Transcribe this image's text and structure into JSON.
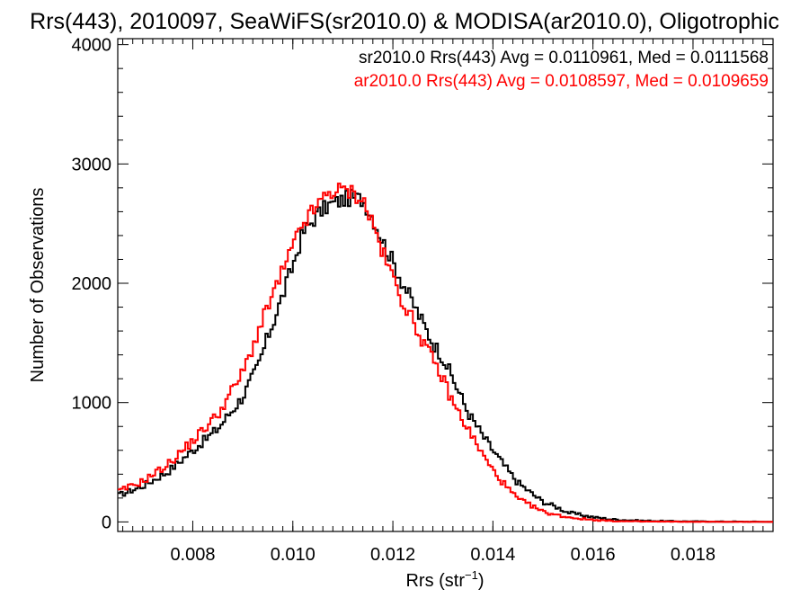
{
  "chart_data": {
    "type": "histogram",
    "title": "Rrs(443), 2010097, SeaWiFS(sr2010.0) & MODISA(ar2010.0), Oligotrophic",
    "xlabel": "Rrs (str",
    "xlabel_sup": "−1",
    "xlabel_close": ")",
    "ylabel": "Number of Observations",
    "xlim": [
      0.0065,
      0.0196
    ],
    "ylim": [
      -80,
      4050
    ],
    "xticks": [
      "0.008",
      "0.010",
      "0.012",
      "0.014",
      "0.016",
      "0.018"
    ],
    "yticks": [
      "0",
      "1000",
      "2000",
      "3000",
      "4000"
    ],
    "grid": false,
    "legend_position": "top-right",
    "series": [
      {
        "name": "sr2010.0",
        "legend": "sr2010.0 Rrs(443) Avg = 0.0110961, Med = 0.0111568",
        "color": "#000000",
        "points": [
          [
            0.0065,
            220
          ],
          [
            0.007,
            300
          ],
          [
            0.0075,
            420
          ],
          [
            0.008,
            600
          ],
          [
            0.0085,
            780
          ],
          [
            0.009,
            1050
          ],
          [
            0.0093,
            1300
          ],
          [
            0.0095,
            1550
          ],
          [
            0.0098,
            1900
          ],
          [
            0.01,
            2150
          ],
          [
            0.0102,
            2420
          ],
          [
            0.0105,
            2580
          ],
          [
            0.0107,
            2650
          ],
          [
            0.011,
            2700
          ],
          [
            0.0112,
            2720
          ],
          [
            0.0114,
            2700
          ],
          [
            0.0116,
            2550
          ],
          [
            0.0118,
            2350
          ],
          [
            0.012,
            2180
          ],
          [
            0.0122,
            2000
          ],
          [
            0.0125,
            1750
          ],
          [
            0.0128,
            1500
          ],
          [
            0.013,
            1380
          ],
          [
            0.0132,
            1200
          ],
          [
            0.0135,
            920
          ],
          [
            0.0138,
            720
          ],
          [
            0.014,
            600
          ],
          [
            0.0143,
            430
          ],
          [
            0.0145,
            330
          ],
          [
            0.0148,
            230
          ],
          [
            0.015,
            170
          ],
          [
            0.0153,
            120
          ],
          [
            0.0155,
            80
          ],
          [
            0.0158,
            55
          ],
          [
            0.016,
            40
          ],
          [
            0.0163,
            25
          ],
          [
            0.0165,
            18
          ],
          [
            0.017,
            10
          ],
          [
            0.0175,
            6
          ],
          [
            0.018,
            4
          ],
          [
            0.0185,
            3
          ],
          [
            0.019,
            2
          ],
          [
            0.0196,
            1
          ]
        ]
      },
      {
        "name": "ar2010.0",
        "legend": "ar2010.0 Rrs(443) Avg = 0.0108597, Med = 0.0109659",
        "color": "#ff0000",
        "points": [
          [
            0.0065,
            250
          ],
          [
            0.007,
            340
          ],
          [
            0.0075,
            480
          ],
          [
            0.008,
            680
          ],
          [
            0.0085,
            900
          ],
          [
            0.009,
            1250
          ],
          [
            0.0093,
            1580
          ],
          [
            0.0095,
            1800
          ],
          [
            0.0098,
            2100
          ],
          [
            0.01,
            2300
          ],
          [
            0.0102,
            2500
          ],
          [
            0.0105,
            2650
          ],
          [
            0.0107,
            2760
          ],
          [
            0.011,
            2780
          ],
          [
            0.0112,
            2760
          ],
          [
            0.0114,
            2700
          ],
          [
            0.0116,
            2500
          ],
          [
            0.0118,
            2250
          ],
          [
            0.012,
            2050
          ],
          [
            0.0122,
            1850
          ],
          [
            0.0125,
            1600
          ],
          [
            0.0128,
            1350
          ],
          [
            0.013,
            1200
          ],
          [
            0.0132,
            1000
          ],
          [
            0.0135,
            780
          ],
          [
            0.0138,
            560
          ],
          [
            0.014,
            430
          ],
          [
            0.0143,
            280
          ],
          [
            0.0145,
            190
          ],
          [
            0.0148,
            130
          ],
          [
            0.015,
            85
          ],
          [
            0.0153,
            55
          ],
          [
            0.0155,
            40
          ],
          [
            0.0158,
            25
          ],
          [
            0.016,
            18
          ],
          [
            0.0163,
            10
          ],
          [
            0.0165,
            6
          ],
          [
            0.017,
            3
          ],
          [
            0.0175,
            2
          ],
          [
            0.018,
            1
          ],
          [
            0.0185,
            1
          ],
          [
            0.019,
            0
          ],
          [
            0.0196,
            0
          ]
        ]
      }
    ]
  }
}
